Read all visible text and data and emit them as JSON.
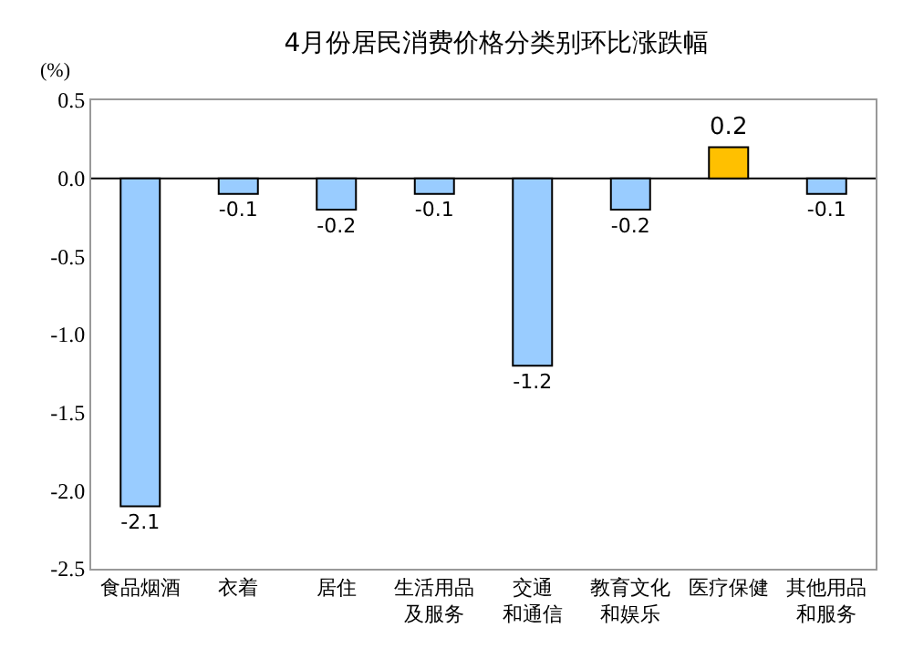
{
  "chart_data": {
    "type": "bar",
    "title": "4月份居民消费价格分类别环比涨跌幅",
    "ylabel": "(%)",
    "categories": [
      "食品烟酒",
      "衣着",
      "居住",
      "生活用品及服务",
      "交通和通信",
      "教育文化和娱乐",
      "医疗保健",
      "其他用品和服务"
    ],
    "values": [
      -2.1,
      -0.1,
      -0.2,
      -0.1,
      -1.2,
      -0.2,
      0.2,
      -0.1
    ],
    "colors": [
      "#99ccff",
      "#99ccff",
      "#99ccff",
      "#99ccff",
      "#99ccff",
      "#99ccff",
      "#ffc000",
      "#99ccff"
    ],
    "ylim": [
      -2.5,
      0.5
    ],
    "yticks": [
      {
        "value": -2.5,
        "label": "-2.5"
      },
      {
        "value": -2.0,
        "label": "-2.0"
      },
      {
        "value": -1.5,
        "label": "-1.5"
      },
      {
        "value": -1.0,
        "label": "-1.0"
      },
      {
        "value": -0.5,
        "label": "-0.5"
      },
      {
        "value": 0.0,
        "label": "0.0"
      },
      {
        "value": 0.5,
        "label": "0.5"
      }
    ],
    "ref_lines": [
      {
        "axis": "y",
        "value": 0.0,
        "color": "#000000"
      }
    ],
    "data_labels": true,
    "grid": false,
    "legend": false
  }
}
